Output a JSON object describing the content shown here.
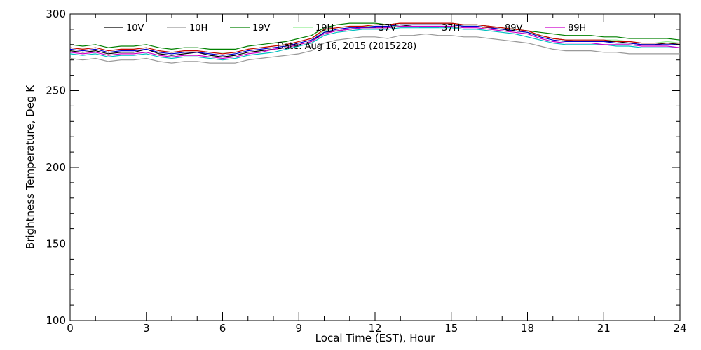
{
  "chart_data": {
    "type": "line",
    "xlabel": "Local Time (EST), Hour",
    "ylabel": "Brightness Temperature, Deg K",
    "xlim": [
      0,
      24
    ],
    "ylim": [
      100,
      300
    ],
    "x_ticks": [
      0,
      3,
      6,
      9,
      12,
      15,
      18,
      21,
      24
    ],
    "y_ticks": [
      100,
      150,
      200,
      250,
      300
    ],
    "x_tick_labels": [
      "0",
      "3",
      "6",
      "9",
      "12",
      "15",
      "18",
      "21",
      "24"
    ],
    "y_tick_labels": [
      "100",
      "150",
      "200",
      "250",
      "300"
    ],
    "grid": false,
    "legend_position": "top",
    "annotation": "Date: Aug 16, 2015 (2015228)",
    "x": [
      0,
      0.5,
      1,
      1.5,
      2,
      2.5,
      3,
      3.5,
      4,
      4.5,
      5,
      5.5,
      6,
      6.5,
      7,
      7.5,
      8,
      8.5,
      9,
      9.5,
      10,
      10.5,
      11,
      11.5,
      12,
      12.5,
      13,
      13.5,
      14,
      14.5,
      15,
      15.5,
      16,
      16.5,
      17,
      17.5,
      18,
      18.5,
      19,
      19.5,
      20,
      20.5,
      21,
      21.5,
      22,
      22.5,
      23,
      23.5,
      24
    ],
    "series": [
      {
        "name": "10V",
        "color": "#000000",
        "values": [
          276,
          275,
          276,
          274,
          275,
          275,
          277,
          274,
          273,
          274,
          275,
          273,
          272,
          273,
          275,
          276,
          277,
          278,
          280,
          282,
          288,
          289,
          290,
          291,
          291,
          291,
          292,
          293,
          293,
          293,
          293,
          292,
          292,
          291,
          290,
          289,
          288,
          286,
          284,
          283,
          282,
          282,
          282,
          282,
          281,
          280,
          280,
          281,
          280
        ]
      },
      {
        "name": "10H",
        "color": "#999999",
        "values": [
          271,
          270,
          271,
          269,
          270,
          270,
          271,
          269,
          268,
          269,
          269,
          268,
          268,
          268,
          270,
          271,
          272,
          273,
          274,
          276,
          281,
          283,
          284,
          285,
          285,
          284,
          286,
          286,
          287,
          286,
          286,
          285,
          285,
          284,
          283,
          282,
          281,
          279,
          277,
          276,
          276,
          276,
          275,
          275,
          274,
          274,
          274,
          274,
          274
        ]
      },
      {
        "name": "19V",
        "color": "#008000",
        "values": [
          280,
          279,
          280,
          278,
          279,
          279,
          280,
          278,
          277,
          278,
          278,
          277,
          277,
          277,
          279,
          280,
          281,
          282,
          284,
          286,
          291,
          293,
          294,
          294,
          294,
          293,
          294,
          294,
          294,
          294,
          294,
          293,
          293,
          292,
          291,
          290,
          289,
          288,
          287,
          286,
          286,
          286,
          285,
          285,
          284,
          284,
          284,
          284,
          283
        ]
      },
      {
        "name": "19H",
        "color": "#90ee90",
        "values": [
          278,
          277,
          278,
          276,
          277,
          277,
          278,
          276,
          275,
          276,
          276,
          275,
          275,
          275,
          277,
          278,
          279,
          280,
          282,
          284,
          289,
          291,
          292,
          292,
          292,
          291,
          293,
          293,
          293,
          293,
          293,
          292,
          292,
          291,
          290,
          289,
          288,
          286,
          284,
          283,
          283,
          283,
          283,
          283,
          282,
          281,
          281,
          282,
          281
        ]
      },
      {
        "name": "37V",
        "color": "#0000cc",
        "values": [
          277,
          276,
          277,
          275,
          276,
          276,
          277,
          275,
          274,
          275,
          275,
          274,
          273,
          274,
          276,
          277,
          278,
          279,
          281,
          283,
          288,
          290,
          291,
          291,
          292,
          292,
          293,
          293,
          293,
          293,
          293,
          292,
          292,
          291,
          290,
          289,
          288,
          285,
          283,
          282,
          282,
          282,
          282,
          281,
          281,
          280,
          280,
          280,
          280
        ]
      },
      {
        "name": "37H",
        "color": "#00c0c0",
        "values": [
          274,
          273,
          274,
          272,
          273,
          273,
          274,
          272,
          271,
          272,
          272,
          271,
          270,
          271,
          273,
          274,
          275,
          277,
          279,
          281,
          286,
          288,
          289,
          290,
          290,
          290,
          291,
          291,
          291,
          291,
          291,
          290,
          290,
          289,
          288,
          287,
          285,
          283,
          281,
          280,
          280,
          280,
          280,
          279,
          279,
          278,
          278,
          278,
          278
        ]
      },
      {
        "name": "89V",
        "color": "#cc0000",
        "values": [
          278,
          277,
          278,
          276,
          277,
          277,
          278,
          276,
          275,
          276,
          276,
          275,
          274,
          275,
          277,
          278,
          279,
          280,
          282,
          284,
          290,
          291,
          292,
          292,
          293,
          293,
          294,
          294,
          294,
          294,
          294,
          293,
          293,
          292,
          291,
          290,
          289,
          286,
          284,
          283,
          283,
          283,
          283,
          282,
          282,
          281,
          281,
          281,
          281
        ]
      },
      {
        "name": "89H",
        "color": "#cc00cc",
        "values": [
          275,
          274,
          275,
          273,
          274,
          274,
          275,
          273,
          272,
          273,
          273,
          272,
          271,
          272,
          274,
          275,
          277,
          278,
          280,
          282,
          287,
          289,
          290,
          291,
          291,
          291,
          292,
          292,
          292,
          292,
          292,
          291,
          291,
          290,
          289,
          288,
          287,
          284,
          282,
          281,
          281,
          281,
          280,
          280,
          280,
          279,
          279,
          279,
          278
        ]
      }
    ]
  }
}
